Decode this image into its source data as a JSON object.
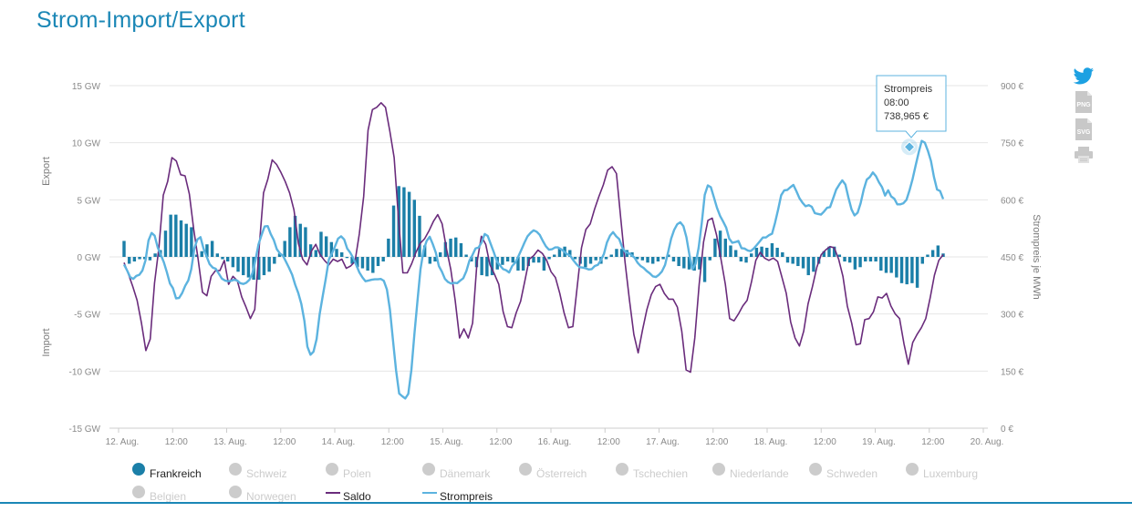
{
  "header": {
    "title": "Strom-Import/Export"
  },
  "chart_data": {
    "type": "bar+line",
    "x_tick_labels": [
      "12. Aug.",
      "12:00",
      "13. Aug.",
      "12:00",
      "14. Aug.",
      "12:00",
      "15. Aug.",
      "12:00",
      "16. Aug.",
      "12:00",
      "17. Aug.",
      "12:00",
      "18. Aug.",
      "12:00",
      "19. Aug.",
      "12:00",
      "20. Aug."
    ],
    "y_left": {
      "ticks": [
        "15 GW",
        "10 GW",
        "5 GW",
        "0 GW",
        "-5 GW",
        "-10 GW",
        "-15 GW"
      ],
      "min": -15,
      "max": 15,
      "label_top": "Export",
      "label_bottom": "Import"
    },
    "y_right": {
      "ticks": [
        "900 €",
        "750 €",
        "600 €",
        "450 €",
        "300 €",
        "150 €",
        "0 €"
      ],
      "min": 0,
      "max": 900,
      "label": "Strompreis je MWh"
    },
    "series": [
      {
        "name": "Frankreich",
        "type": "column",
        "color": "#1b7fa8",
        "visible": true,
        "axis": "left",
        "values": [
          1.4,
          -0.6,
          -0.4,
          -0.2,
          -0.2,
          -0.3,
          0.3,
          0.6,
          2.3,
          3.7,
          3.7,
          3.2,
          2.9,
          2.6,
          0.2,
          0.5,
          1.1,
          1.4,
          0.3,
          -0.2,
          -0.4,
          -0.9,
          -1.3,
          -1.6,
          -1.8,
          -2.0,
          -2.0,
          -1.6,
          -1.3,
          -0.6,
          0.3,
          1.4,
          2.6,
          3.6,
          2.9,
          2.6,
          1.1,
          0.6,
          2.2,
          1.8,
          1.3,
          0.7,
          0.4,
          -0.1,
          -0.6,
          -0.9,
          -1.0,
          -1.2,
          -1.4,
          -0.8,
          -0.4,
          1.6,
          4.5,
          6.2,
          6.1,
          5.7,
          5.0,
          3.6,
          1.0,
          -0.6,
          -0.4,
          0.4,
          1.3,
          1.6,
          1.7,
          1.2,
          0.2,
          -0.4,
          -0.9,
          -1.6,
          -1.7,
          -1.6,
          -1.1,
          -0.7,
          -0.4,
          -0.5,
          -1.2,
          -1.2,
          -0.8,
          -0.5,
          -0.5,
          -1.2,
          -0.2,
          0.2,
          0.8,
          0.9,
          0.6,
          -0.2,
          -0.6,
          -0.9,
          -0.6,
          -0.3,
          -0.6,
          -0.2,
          0.2,
          0.7,
          0.7,
          0.6,
          0.4,
          -0.2,
          -0.3,
          -0.5,
          -0.6,
          -0.4,
          -0.2,
          0.2,
          -0.4,
          -0.8,
          -1.0,
          -1.1,
          -1.2,
          -1.1,
          -2.2,
          -0.3,
          1.6,
          2.3,
          1.6,
          1.0,
          0.6,
          -0.4,
          -0.5,
          0.3,
          0.8,
          0.9,
          0.8,
          1.2,
          0.8,
          0.4,
          -0.5,
          -0.6,
          -0.8,
          -1.0,
          -1.6,
          -1.3,
          -0.6,
          0.5,
          0.9,
          0.9,
          0.2,
          -0.4,
          -0.5,
          -1.1,
          -0.9,
          -0.4,
          -0.4,
          -0.4,
          -1.2,
          -1.4,
          -1.4,
          -1.8,
          -2.3,
          -2.4,
          -2.3,
          -2.7,
          -0.6,
          0.2,
          0.6,
          1.0,
          0.3
        ]
      },
      {
        "name": "Saldo",
        "type": "line",
        "color": "#6a2c7c",
        "visible": true,
        "axis": "left",
        "values": [
          -0.5,
          -1.5,
          -2.6,
          -3.8,
          -5.8,
          -8.2,
          -7.2,
          -2.3,
          0.8,
          5.4,
          6.6,
          8.7,
          8.4,
          7.2,
          7.1,
          5.5,
          2.4,
          -0.2,
          -3.1,
          -3.4,
          -1.7,
          -1.2,
          -1.2,
          -0.3,
          -2.4,
          -1.7,
          -2.1,
          -3.5,
          -4.4,
          -5.4,
          -4.6,
          0.8,
          5.6,
          6.8,
          8.5,
          8.1,
          7.4,
          6.6,
          5.6,
          4.1,
          1.2,
          -0.2,
          -0.7,
          0.5,
          1.1,
          0.2,
          -0.3,
          -0.7,
          -0.2,
          -0.4,
          -0.2,
          -1.0,
          -0.8,
          -0.4,
          2.0,
          5.3,
          11.1,
          12.9,
          13.1,
          13.5,
          13.1,
          11.0,
          8.7,
          3.3,
          -1.4,
          -1.4,
          -0.6,
          0.4,
          1.2,
          1.6,
          2.3,
          3.1,
          3.7,
          2.9,
          0.7,
          -1.1,
          -3.8,
          -7.1,
          -6.3,
          -7.1,
          -5.8,
          -0.5,
          1.8,
          1.1,
          -0.7,
          -1.5,
          -2.4,
          -4.8,
          -6.1,
          -6.2,
          -4.9,
          -3.9,
          -2.1,
          -0.2,
          0.1,
          0.6,
          0.3,
          -0.3,
          -1.3,
          -1.8,
          -3.2,
          -4.9,
          -6.2,
          -6.1,
          -2.6,
          0.8,
          2.4,
          2.9,
          4.2,
          5.3,
          6.3,
          7.6,
          7.9,
          7.3,
          3.4,
          -0.5,
          -3.8,
          -6.8,
          -8.4,
          -6.4,
          -4.6,
          -3.3,
          -2.6,
          -2.4,
          -3.2,
          -3.7,
          -3.7,
          -4.4,
          -6.5,
          -9.9,
          -10.1,
          -7.1,
          -2.4,
          1.3,
          3.2,
          3.4,
          1.9,
          -0.2,
          -2.4,
          -5.4,
          -5.6,
          -5.0,
          -4.3,
          -3.8,
          -2.2,
          -0.3,
          0.4,
          -0.1,
          -0.3,
          -0.1,
          -0.4,
          -1.8,
          -3.2,
          -5.7,
          -7.1,
          -7.8,
          -6.5,
          -4.1,
          -2.6,
          -0.9,
          0.2,
          0.6,
          0.9,
          0.8,
          -0.2,
          -1.7,
          -4.3,
          -5.8,
          -7.7,
          -7.6,
          -5.5,
          -5.4,
          -4.8,
          -3.5,
          -3.6,
          -3.2,
          -4.3,
          -5.0,
          -5.4,
          -7.6,
          -9.4,
          -7.5,
          -6.8,
          -6.2,
          -5.4,
          -3.6,
          -1.6,
          -0.3,
          0.2
        ]
      },
      {
        "name": "Strompreis",
        "type": "line",
        "color": "#5cb3df",
        "visible": true,
        "axis": "right",
        "values": [
          430,
          414,
          397,
          392,
          400,
          403,
          414,
          441,
          493,
          513,
          506,
          475,
          456,
          436,
          410,
          380,
          368,
          341,
          342,
          355,
          374,
          388,
          418,
          473,
          496,
          502,
          472,
          451,
          431,
          422,
          419,
          406,
          393,
          388,
          386,
          387,
          390,
          388,
          381,
          379,
          382,
          390,
          407,
          442,
          483,
          508,
          530,
          531,
          510,
          494,
          470,
          459,
          453,
          437,
          421,
          403,
          377,
          355,
          327,
          282,
          214,
          193,
          201,
          234,
          299,
          347,
          392,
          443,
          459,
          477,
          498,
          504,
          496,
          472,
          461,
          447,
          428,
          409,
          396,
          386,
          388,
          390,
          391,
          391,
          392,
          387,
          364,
          311,
          229,
          152,
          91,
          84,
          78,
          90,
          153,
          247,
          335,
          418,
          468,
          492,
          503,
          484,
          461,
          426,
          411,
          392,
          384,
          380,
          382,
          381,
          388,
          394,
          413,
          440,
          455,
          472,
          475,
          488,
          510,
          505,
          483,
          462,
          438,
          428,
          418,
          415,
          409,
          426,
          435,
          451,
          469,
          487,
          504,
          513,
          520,
          516,
          508,
          492,
          478,
          469,
          470,
          475,
          475,
          470,
          464,
          457,
          453,
          441,
          431,
          423,
          422,
          420,
          417,
          418,
          426,
          429,
          441,
          458,
          488,
          506,
          515,
          504,
          497,
          475,
          463,
          460,
          455,
          448,
          435,
          426,
          421,
          413,
          407,
          399,
          397,
          403,
          412,
          429,
          462,
          498,
          521,
          536,
          541,
          531,
          502,
          454,
          418,
          432,
          474,
          538,
          613,
          638,
          633,
          606,
          579,
          558,
          543,
          527,
          498,
          487,
          489,
          492,
          473,
          472,
          467,
          465,
          472,
          481,
          491,
          501,
          501,
          507,
          511,
          540,
          575,
          612,
          625,
          626,
          633,
          639,
          622,
          604,
          592,
          583,
          586,
          582,
          565,
          563,
          561,
          569,
          579,
          581,
          604,
          627,
          640,
          651,
          640,
          606,
          575,
          559,
          566,
          591,
          627,
          653,
          660,
          672,
          662,
          646,
          633,
          611,
          625,
          609,
          603,
          588,
          588,
          591,
          600,
          625,
          655,
          690,
          725,
          755,
          750,
          729,
          702,
          660,
          627,
          623,
          602
        ]
      },
      {
        "name": "Schweiz",
        "visible": false
      },
      {
        "name": "Polen",
        "visible": false
      },
      {
        "name": "Dänemark",
        "visible": false
      },
      {
        "name": "Österreich",
        "visible": false
      },
      {
        "name": "Tschechien",
        "visible": false
      },
      {
        "name": "Niederlande",
        "visible": false
      },
      {
        "name": "Schweden",
        "visible": false
      },
      {
        "name": "Luxemburg",
        "visible": false
      },
      {
        "name": "Belgien",
        "visible": false
      },
      {
        "name": "Norwegen",
        "visible": false
      }
    ],
    "legend": {
      "placement": "bottom",
      "items": [
        {
          "label": "Frankreich",
          "symbol": "circle",
          "color": "#1b7fa8",
          "active": true
        },
        {
          "label": "Schweiz",
          "symbol": "circle",
          "color": "#cccccc",
          "active": false
        },
        {
          "label": "Polen",
          "symbol": "circle",
          "color": "#cccccc",
          "active": false
        },
        {
          "label": "Dänemark",
          "symbol": "circle",
          "color": "#cccccc",
          "active": false
        },
        {
          "label": "Österreich",
          "symbol": "circle",
          "color": "#cccccc",
          "active": false
        },
        {
          "label": "Tschechien",
          "symbol": "circle",
          "color": "#cccccc",
          "active": false
        },
        {
          "label": "Niederlande",
          "symbol": "circle",
          "color": "#cccccc",
          "active": false
        },
        {
          "label": "Schweden",
          "symbol": "circle",
          "color": "#cccccc",
          "active": false
        },
        {
          "label": "Luxemburg",
          "symbol": "circle",
          "color": "#cccccc",
          "active": false
        },
        {
          "label": "Belgien",
          "symbol": "circle",
          "color": "#cccccc",
          "active": false
        },
        {
          "label": "Norwegen",
          "symbol": "circle",
          "color": "#cccccc",
          "active": false
        },
        {
          "label": "Saldo",
          "symbol": "line",
          "color": "#6a2c7c",
          "active": true
        },
        {
          "label": "Strompreis",
          "symbol": "line",
          "color": "#5cb3df",
          "active": true
        }
      ]
    },
    "tooltip": {
      "series": "Strompreis",
      "lines": [
        "Strompreis",
        "08:00",
        "738,965 €"
      ],
      "value": 738.965
    },
    "grid": true
  },
  "toolbar": {
    "twitter_icon": "twitter-icon",
    "png_label": "PNG",
    "svg_label": "SVG",
    "print_icon": "printer-icon"
  }
}
